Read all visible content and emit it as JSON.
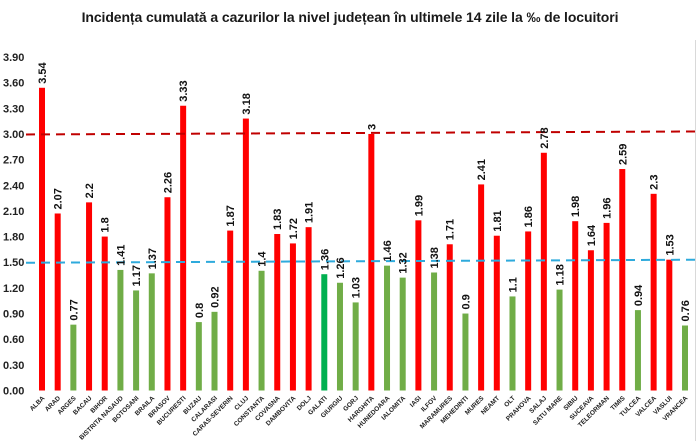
{
  "chart_data": {
    "type": "bar",
    "title": "Incidența cumulată a cazurilor la nivel județean în ultimele 14 zile la ‰ de locuitori",
    "xlabel": "",
    "ylabel": "",
    "ylim": [
      0,
      3.9
    ],
    "yticks": [
      "0.00",
      "0.30",
      "0.60",
      "0.90",
      "1.20",
      "1.50",
      "1.80",
      "2.10",
      "2.40",
      "2.70",
      "3.00",
      "3.30",
      "3.60",
      "3.90"
    ],
    "ytick_values": [
      0,
      0.3,
      0.6,
      0.9,
      1.2,
      1.5,
      1.8,
      2.1,
      2.4,
      2.7,
      3.0,
      3.3,
      3.6,
      3.9
    ],
    "grid": false,
    "legend": "none",
    "categories": [
      "ALBA",
      "ARAD",
      "ARGES",
      "BACAU",
      "BIHOR",
      "BISTRITA NASAUD",
      "BOTOSANI",
      "BRAILA",
      "BRASOV",
      "BUCURESTI",
      "BUZAU",
      "CALARASI",
      "CARAS-SEVERIN",
      "CLUJ",
      "CONSTANTA",
      "COVASNA",
      "DAMBOVITA",
      "DOLJ",
      "GALATI",
      "GIURGIU",
      "GORJ",
      "HARGHITA",
      "HUNEDOARA",
      "IALOMITA",
      "IASI",
      "ILFOV",
      "MARAMURES",
      "MEHEDINTI",
      "MURES",
      "NEAMT",
      "OLT",
      "PRAHOVA",
      "SALAJ",
      "SATU MARE",
      "SIBIU",
      "SUCEAVA",
      "TELEORMAN",
      "TIMIS",
      "TULCEA",
      "VALCEA",
      "VASLUI",
      "VRANCEA"
    ],
    "values": [
      3.54,
      2.07,
      0.77,
      2.2,
      1.8,
      1.41,
      1.17,
      1.37,
      2.26,
      3.33,
      0.8,
      0.92,
      1.87,
      3.18,
      1.4,
      1.83,
      1.72,
      1.91,
      1.36,
      1.26,
      1.03,
      3,
      1.46,
      1.32,
      1.99,
      1.38,
      1.71,
      0.9,
      2.41,
      1.81,
      1.1,
      1.86,
      2.78,
      1.18,
      1.98,
      1.64,
      1.96,
      2.59,
      0.94,
      2.3,
      1.53,
      0.76
    ],
    "value_labels": [
      "3.54",
      "2.07",
      "0.77",
      "2.2",
      "1.8",
      "1.41",
      "1.17",
      "1.37",
      "2.26",
      "3.33",
      "0.8",
      "0.92",
      "1.87",
      "3.18",
      "1.4",
      "1.83",
      "1.72",
      "1.91",
      "1.36",
      "1.26",
      "1.03",
      "3",
      "1.46",
      "1.32",
      "1.99",
      "1.38",
      "1.71",
      "0.9",
      "2.41",
      "1.81",
      "1.1",
      "1.86",
      "2.78",
      "1.18",
      "1.98",
      "1.64",
      "1.96",
      "2.59",
      "0.94",
      "2.3",
      "1.53",
      "0.76"
    ],
    "bar_color_classes": [
      "red",
      "red",
      "green",
      "red",
      "red",
      "green",
      "green",
      "green",
      "red",
      "red",
      "green",
      "green",
      "red",
      "red",
      "green",
      "red",
      "red",
      "red",
      "darkgreen",
      "green",
      "green",
      "red",
      "green",
      "green",
      "red",
      "green",
      "red",
      "green",
      "red",
      "red",
      "green",
      "red",
      "red",
      "green",
      "red",
      "red",
      "red",
      "red",
      "green",
      "red",
      "red",
      "green"
    ],
    "colors": {
      "red": "#ff0000",
      "green": "#70ad47",
      "darkgreen": "#00b050",
      "threshold_high": "#c00000",
      "threshold_low": "#2eaadc"
    },
    "reference_lines": [
      {
        "name": "threshold-3",
        "value": 3.0,
        "style": "dashed",
        "color_key": "threshold_high"
      },
      {
        "name": "threshold-1.5",
        "value": 1.5,
        "style": "dashed",
        "color_key": "threshold_low"
      }
    ]
  }
}
